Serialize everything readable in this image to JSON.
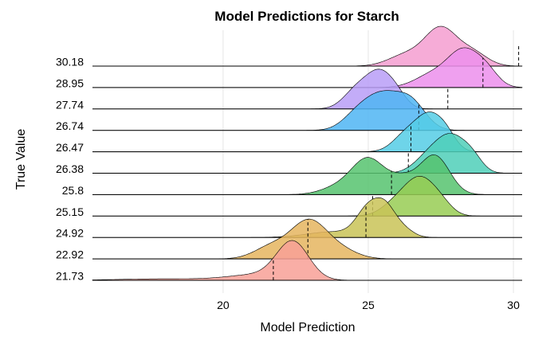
{
  "chart_data": {
    "type": "ridgeline",
    "title": "Model Predictions for Starch",
    "xlabel": "Model Prediction",
    "ylabel": "True Value",
    "xlim": [
      15.5,
      30.3
    ],
    "x_ticks": [
      20,
      25,
      30
    ],
    "x_tick_labels": [
      "20",
      "25",
      "30"
    ],
    "grid": true,
    "ridges": [
      {
        "label": "21.73",
        "true_value": 21.73,
        "color": "#F8A097",
        "peaks": [
          {
            "mu": 22.4,
            "sd": 0.55,
            "h": 1.0
          },
          {
            "mu": 21.2,
            "sd": 1.0,
            "h": 0.15
          },
          {
            "mu": 18.0,
            "sd": 1.6,
            "h": 0.04
          }
        ]
      },
      {
        "label": "22.92",
        "true_value": 22.92,
        "color": "#E5B55F",
        "peaks": [
          {
            "mu": 22.95,
            "sd": 0.6,
            "h": 1.0
          },
          {
            "mu": 21.7,
            "sd": 0.6,
            "h": 0.35
          },
          {
            "mu": 24.0,
            "sd": 0.6,
            "h": 0.25
          }
        ]
      },
      {
        "label": "24.92",
        "true_value": 24.92,
        "color": "#C9C357",
        "peaks": [
          {
            "mu": 25.0,
            "sd": 0.4,
            "h": 0.85
          },
          {
            "mu": 25.6,
            "sd": 0.35,
            "h": 0.8
          },
          {
            "mu": 23.8,
            "sd": 0.9,
            "h": 0.18
          },
          {
            "mu": 26.2,
            "sd": 0.35,
            "h": 0.25
          }
        ]
      },
      {
        "label": "25.15",
        "true_value": 25.15,
        "color": "#98CC54",
        "peaks": [
          {
            "mu": 26.8,
            "sd": 0.5,
            "h": 1.0
          },
          {
            "mu": 26.0,
            "sd": 0.5,
            "h": 0.4
          },
          {
            "mu": 27.5,
            "sd": 0.4,
            "h": 0.3
          }
        ]
      },
      {
        "label": "25.8",
        "true_value": 25.8,
        "color": "#56C36E",
        "peaks": [
          {
            "mu": 25.0,
            "sd": 0.55,
            "h": 0.9
          },
          {
            "mu": 27.3,
            "sd": 0.5,
            "h": 1.0
          },
          {
            "mu": 26.2,
            "sd": 0.5,
            "h": 0.4
          },
          {
            "mu": 24.0,
            "sd": 0.6,
            "h": 0.2
          }
        ]
      },
      {
        "label": "26.38",
        "true_value": 26.38,
        "color": "#4FCFB8",
        "peaks": [
          {
            "mu": 27.9,
            "sd": 0.5,
            "h": 1.0
          },
          {
            "mu": 27.1,
            "sd": 0.5,
            "h": 0.5
          },
          {
            "mu": 28.6,
            "sd": 0.35,
            "h": 0.35
          }
        ]
      },
      {
        "label": "26.47",
        "true_value": 26.47,
        "color": "#55CDE5",
        "peaks": [
          {
            "mu": 27.1,
            "sd": 0.45,
            "h": 1.0
          },
          {
            "mu": 26.3,
            "sd": 0.45,
            "h": 0.5
          },
          {
            "mu": 27.7,
            "sd": 0.35,
            "h": 0.4
          }
        ]
      },
      {
        "label": "26.74",
        "true_value": 26.74,
        "color": "#4FB5F3",
        "peaks": [
          {
            "mu": 25.5,
            "sd": 0.6,
            "h": 1.0
          },
          {
            "mu": 26.5,
            "sd": 0.5,
            "h": 0.75
          },
          {
            "mu": 24.6,
            "sd": 0.5,
            "h": 0.4
          }
        ]
      },
      {
        "label": "27.74",
        "true_value": 27.74,
        "color": "#B99EF7",
        "peaks": [
          {
            "mu": 25.4,
            "sd": 0.45,
            "h": 1.0
          },
          {
            "mu": 24.6,
            "sd": 0.45,
            "h": 0.55
          },
          {
            "mu": 26.0,
            "sd": 0.35,
            "h": 0.3
          }
        ]
      },
      {
        "label": "28.95",
        "true_value": 28.95,
        "color": "#EC8FEC",
        "peaks": [
          {
            "mu": 28.3,
            "sd": 0.55,
            "h": 1.0
          },
          {
            "mu": 27.2,
            "sd": 0.6,
            "h": 0.35
          },
          {
            "mu": 29.1,
            "sd": 0.4,
            "h": 0.35
          }
        ]
      },
      {
        "label": "30.18",
        "true_value": 30.18,
        "color": "#F59DD0",
        "peaks": [
          {
            "mu": 27.5,
            "sd": 0.55,
            "h": 1.0
          },
          {
            "mu": 26.3,
            "sd": 0.6,
            "h": 0.3
          },
          {
            "mu": 28.6,
            "sd": 0.5,
            "h": 0.35
          }
        ]
      }
    ]
  }
}
